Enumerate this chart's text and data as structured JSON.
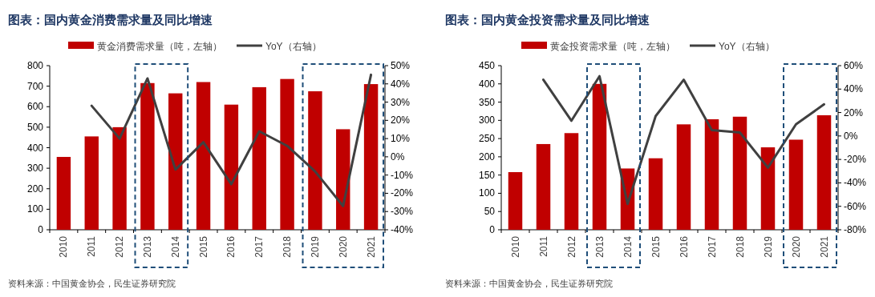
{
  "chart_data": [
    {
      "type": "bar",
      "title": "图表：国内黄金消费需求量及同比增速",
      "categories": [
        "2010",
        "2011",
        "2012",
        "2013",
        "2014",
        "2015",
        "2016",
        "2017",
        "2018",
        "2019",
        "2020",
        "2021"
      ],
      "series": [
        {
          "name": "黄金消费需求量（吨，左轴）",
          "type": "bar",
          "color": "#c00000",
          "values": [
            355,
            455,
            500,
            715,
            665,
            720,
            610,
            695,
            735,
            675,
            490,
            710
          ]
        },
        {
          "name": "YoY（右轴）",
          "type": "line",
          "axis": "y2",
          "color": "#404040",
          "values": [
            null,
            28,
            10,
            43,
            -7,
            8,
            -15,
            14,
            6,
            -8,
            -27,
            45
          ]
        }
      ],
      "ylim": [
        0,
        800
      ],
      "yticks": [
        0,
        100,
        200,
        300,
        400,
        500,
        600,
        700,
        800
      ],
      "y2lim": [
        -40,
        50
      ],
      "y2ticks": [
        {
          "value": -40,
          "label": "-40%"
        },
        {
          "value": -30,
          "label": "-30%"
        },
        {
          "value": -20,
          "label": "-20%"
        },
        {
          "value": -10,
          "label": "-10%"
        },
        {
          "value": 0,
          "label": "0%"
        },
        {
          "value": 10,
          "label": "10%"
        },
        {
          "value": 20,
          "label": "20%"
        },
        {
          "value": 30,
          "label": "30%"
        },
        {
          "value": 40,
          "label": "40%"
        },
        {
          "value": 50,
          "label": "50%"
        }
      ],
      "legend": "top",
      "grid": false,
      "marker": "none",
      "annotations": [
        "资料来源：中国黄金协会，民生证券研究院"
      ]
    },
    {
      "type": "bar",
      "title": "图表：国内黄金投资需求量及同比增速",
      "categories": [
        "2010",
        "2011",
        "2012",
        "2013",
        "2014",
        "2015",
        "2016",
        "2017",
        "2018",
        "2019",
        "2020",
        "2021"
      ],
      "series": [
        {
          "name": "黄金投资需求量（吨，左轴）",
          "type": "bar",
          "color": "#c00000",
          "values": [
            158,
            235,
            265,
            400,
            168,
            196,
            289,
            303,
            310,
            226,
            247,
            314
          ]
        },
        {
          "name": "YoY（右轴）",
          "type": "line",
          "axis": "y2",
          "color": "#404040",
          "values": [
            null,
            48,
            13,
            51,
            -58,
            17,
            48,
            5,
            3,
            -27,
            10,
            27
          ]
        }
      ],
      "ylim": [
        0,
        450
      ],
      "yticks": [
        0,
        50,
        100,
        150,
        200,
        250,
        300,
        350,
        400,
        450
      ],
      "y2lim": [
        -80,
        60
      ],
      "y2ticks": [
        {
          "value": -80,
          "label": "-80%"
        },
        {
          "value": -60,
          "label": "-60%"
        },
        {
          "value": -40,
          "label": "-40%"
        },
        {
          "value": -20,
          "label": "-20%"
        },
        {
          "value": 0,
          "label": "0%"
        },
        {
          "value": 20,
          "label": "20%"
        },
        {
          "value": 40,
          "label": "40%"
        },
        {
          "value": 60,
          "label": "60%"
        }
      ],
      "legend": "top",
      "grid": false,
      "marker": "none",
      "annotations": [
        "资料来源：中国黄金协会，民生证券研究院"
      ]
    }
  ]
}
